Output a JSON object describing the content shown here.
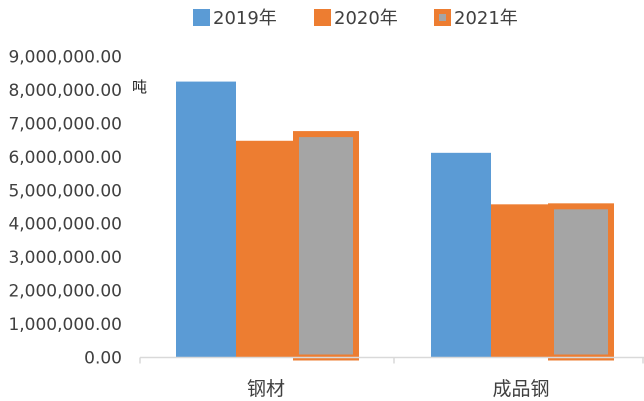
{
  "chart_data": {
    "type": "bar",
    "title": "",
    "xlabel": "",
    "ylabel": "",
    "unit_label": "吨",
    "categories": [
      "钢材",
      "成品钢"
    ],
    "series": [
      {
        "name": "2019年",
        "values": [
          8250000,
          6120000
        ],
        "color": "#5B9BD5"
      },
      {
        "name": "2020年",
        "values": [
          6480000,
          4580000
        ],
        "color": "#ED7D31"
      },
      {
        "name": "2021年",
        "values": [
          6680000,
          4520000
        ],
        "color": "#ED7D31",
        "inner_color": "#A5A5A5",
        "legend_marker_color": "#A5A5A5"
      }
    ],
    "ylim": [
      0,
      9000000
    ],
    "y_ticks": [
      0,
      1000000,
      2000000,
      3000000,
      4000000,
      5000000,
      6000000,
      7000000,
      8000000,
      9000000
    ],
    "y_tick_labels": [
      "0.00",
      "1,000,000.00",
      "2,000,000.00",
      "3,000,000.00",
      "4,000,000.00",
      "5,000,000.00",
      "6,000,000.00",
      "7,000,000.00",
      "8,000,000.00",
      "9,000,000.00"
    ],
    "grid": false,
    "legend_position": "top-center",
    "axis_color": "#D9D9D9"
  }
}
